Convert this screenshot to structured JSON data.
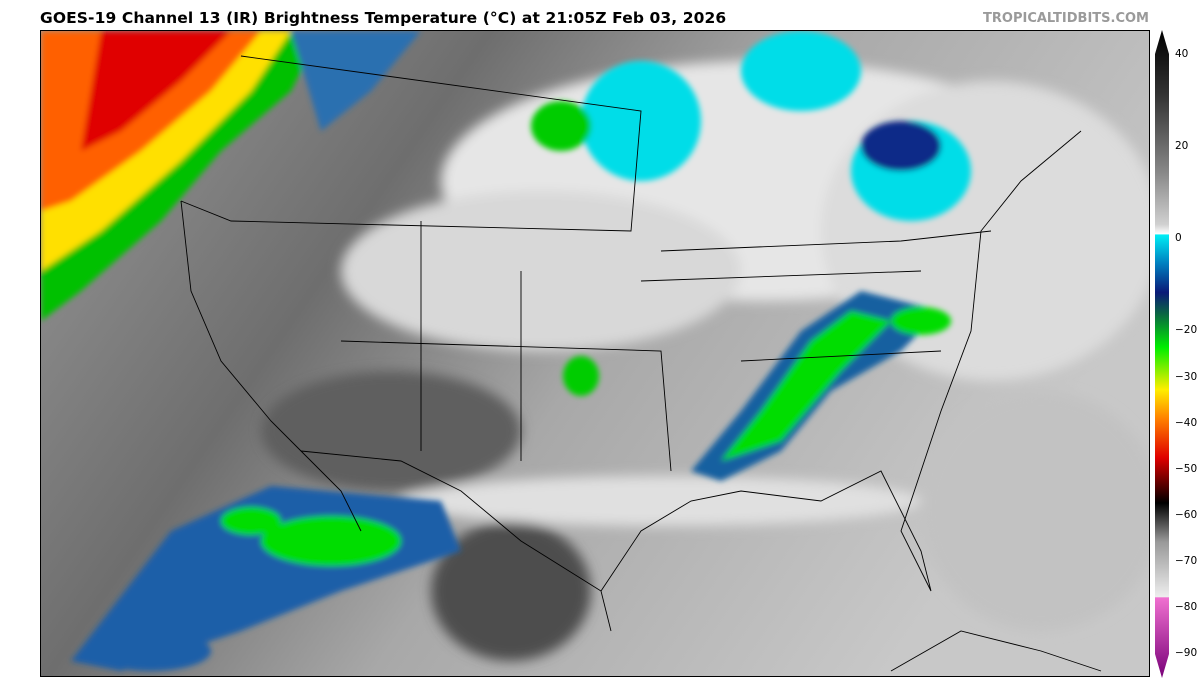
{
  "title": "GOES-19 Channel 13 (IR) Brightness Temperature (°C) at 21:05Z Feb 03, 2026",
  "brand": "TROPICALTIDBITS.COM",
  "colorbar": {
    "min": -90,
    "max": 40,
    "ticks": [
      "40",
      "20",
      "0",
      "−20",
      "−30",
      "−40",
      "−50",
      "−60",
      "−70",
      "−80",
      "−90"
    ],
    "tick_values": [
      40,
      20,
      0,
      -20,
      -30,
      -40,
      -50,
      -60,
      -70,
      -80,
      -90
    ],
    "colors": {
      "warm_black": "#000000",
      "gray": "#808080",
      "white": "#ffffff",
      "cyan": "#00e5f0",
      "navy": "#0a1a78",
      "green": "#00ee00",
      "yellow": "#ffee00",
      "orange": "#ff7a00",
      "red": "#e00000",
      "pink": "#f070d0",
      "purple": "#7a007a"
    }
  }
}
